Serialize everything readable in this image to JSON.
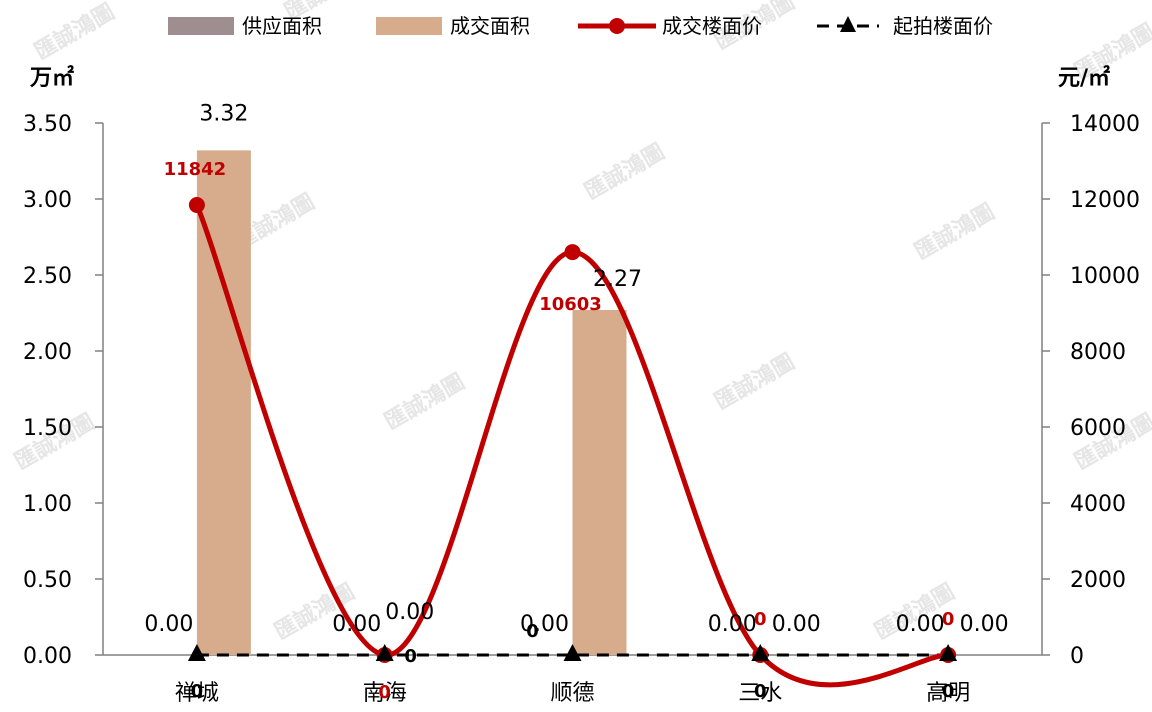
{
  "chart_data": {
    "type": "bar",
    "categories": [
      "禅城",
      "南海",
      "顺德",
      "三水",
      "高明"
    ],
    "series": [
      {
        "name": "供应面积",
        "kind": "bar",
        "axis": "left",
        "color": "#9E8E90",
        "values": [
          0,
          0,
          0,
          0,
          0
        ]
      },
      {
        "name": "成交面积",
        "kind": "bar",
        "axis": "left",
        "color": "#D6AC8C",
        "values": [
          3.32,
          0,
          2.27,
          0,
          0
        ]
      },
      {
        "name": "成交楼面价",
        "kind": "line",
        "axis": "right",
        "color": "#C00000",
        "smooth": true,
        "marker": "circle",
        "values": [
          11842,
          0,
          10603,
          0,
          0
        ]
      },
      {
        "name": "起拍楼面价",
        "kind": "line",
        "axis": "right",
        "color": "#000000",
        "dashed": true,
        "marker": "triangle",
        "values": [
          0,
          0,
          0,
          0,
          0
        ]
      }
    ],
    "supply_labels": [
      "0.00",
      "0.00",
      "0.00",
      "0.00",
      "0.00"
    ],
    "deal_area_labels": [
      "3.32",
      "0.00",
      "2.27",
      "0.00",
      "0.00"
    ],
    "deal_price_labels": [
      "11842",
      "0",
      "10603",
      "0",
      "0"
    ],
    "start_price_labels": [
      "0",
      "0",
      "0",
      "0",
      "0"
    ],
    "ylabel": "万㎡",
    "y2label": "元/㎡",
    "ylim": [
      0,
      3.5
    ],
    "y2lim": [
      0,
      14000
    ],
    "yticks": [
      "0.00",
      "0.50",
      "1.00",
      "1.50",
      "2.00",
      "2.50",
      "3.00",
      "3.50"
    ],
    "y2ticks": [
      "0",
      "2000",
      "4000",
      "6000",
      "8000",
      "10000",
      "12000",
      "14000"
    ],
    "legend": "top",
    "grid": false,
    "watermark": "匯誠鴻圖"
  }
}
